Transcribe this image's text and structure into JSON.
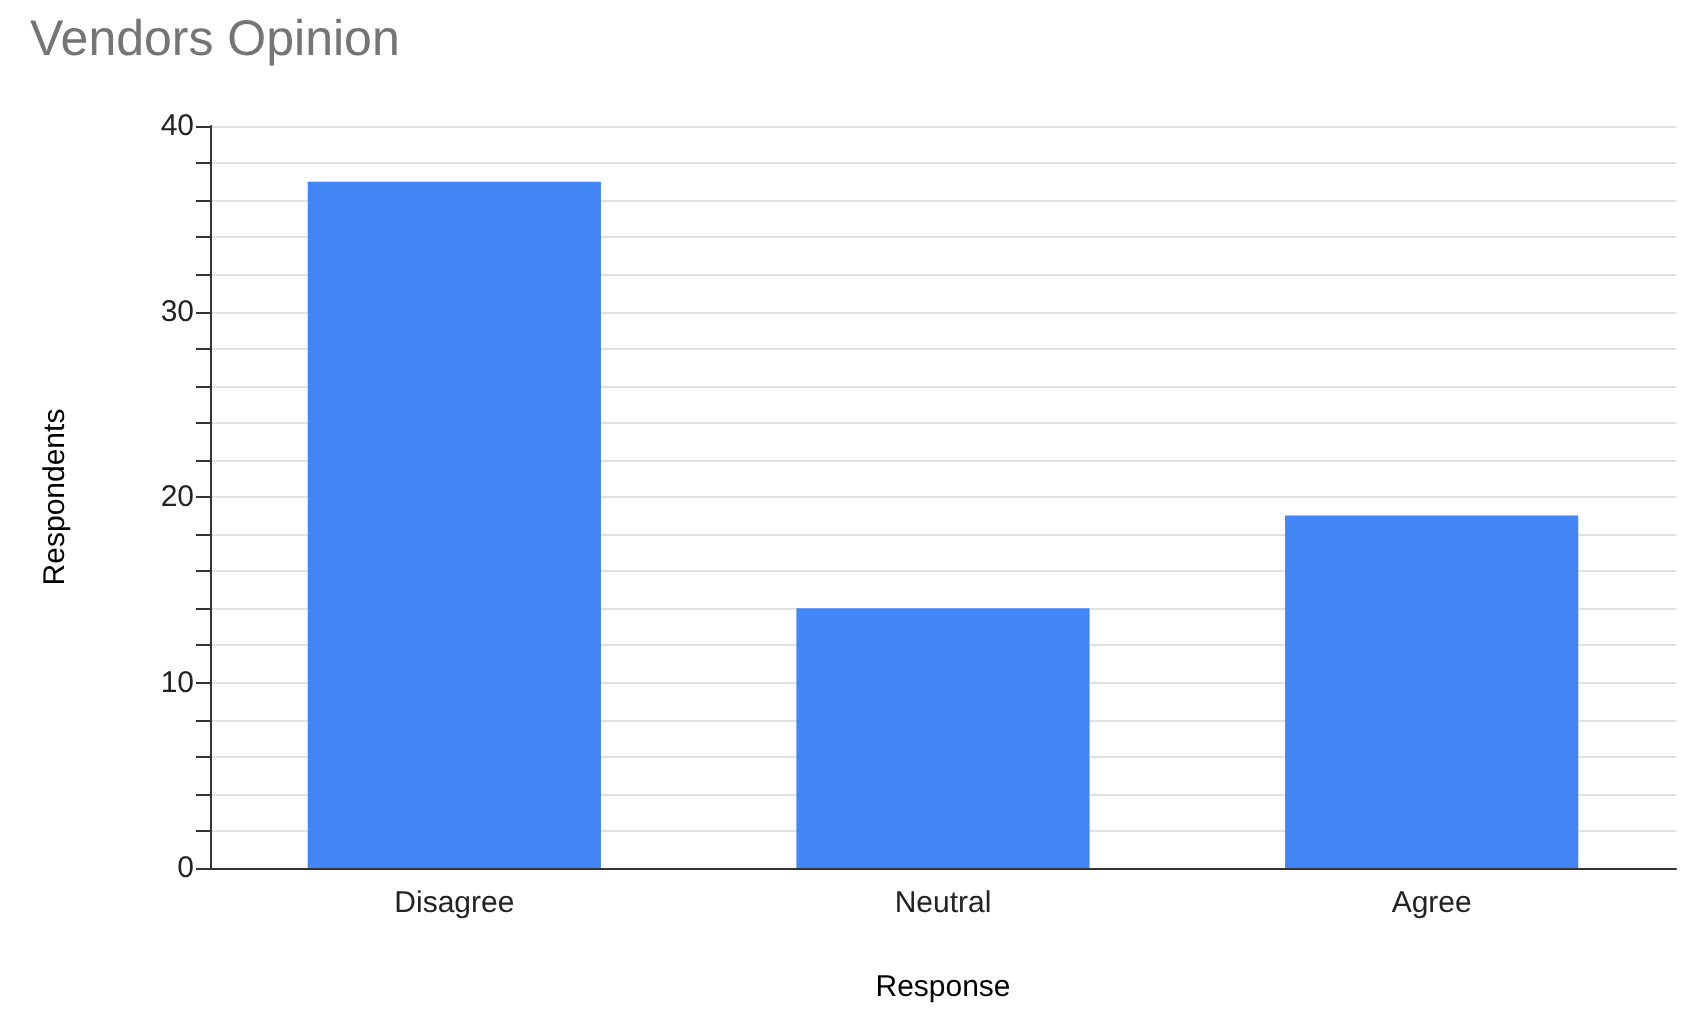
{
  "chart_data": {
    "type": "bar",
    "title": "Vendors Opinion",
    "xlabel": "Response",
    "ylabel": "Respondents",
    "categories": [
      "Disagree",
      "Neutral",
      "Agree"
    ],
    "values": [
      37,
      14,
      19
    ],
    "color": "#4285f4",
    "ylim": [
      0,
      40
    ],
    "yticks": [
      0,
      {
        "value": 2,
        "label": null
      },
      {
        "value": 4,
        "label": null
      },
      {
        "value": 6,
        "label": null
      },
      {
        "value": 8,
        "label": null
      },
      10,
      {
        "value": 12,
        "label": null
      },
      {
        "value": 14,
        "label": null
      },
      {
        "value": 16,
        "label": null
      },
      {
        "value": 18,
        "label": null
      },
      20,
      {
        "value": 22,
        "label": null
      },
      {
        "value": 24,
        "label": null
      },
      {
        "value": 26,
        "label": null
      },
      {
        "value": 28,
        "label": null
      },
      30,
      {
        "value": 32,
        "label": null
      },
      {
        "value": 34,
        "label": null
      },
      {
        "value": 36,
        "label": null
      },
      {
        "value": 38,
        "label": null
      },
      40
    ],
    "grid": "y"
  }
}
